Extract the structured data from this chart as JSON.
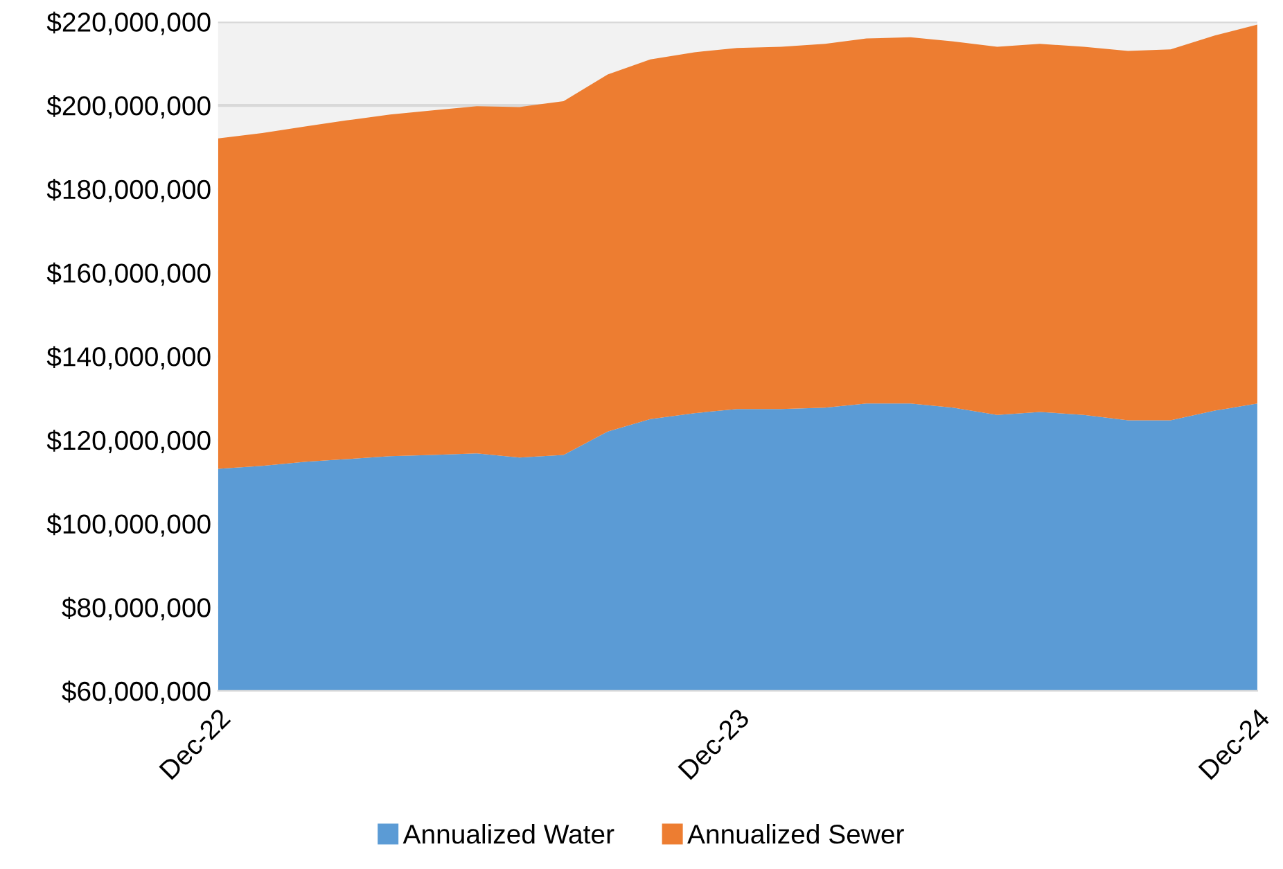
{
  "chart_data": {
    "type": "area",
    "stacked": true,
    "x": [
      "2022-12",
      "2023-01",
      "2023-02",
      "2023-03",
      "2023-04",
      "2023-05",
      "2023-06",
      "2023-07",
      "2023-08",
      "2023-09",
      "2023-10",
      "2023-11",
      "2023-12",
      "2024-01",
      "2024-02",
      "2024-03",
      "2024-04",
      "2024-05",
      "2024-06",
      "2024-07",
      "2024-08",
      "2024-09",
      "2024-10",
      "2024-11",
      "2024-12"
    ],
    "series": [
      {
        "name": "Annualized Water",
        "color": "#5b9bd5",
        "values": [
          113100000,
          113800000,
          114800000,
          115400000,
          116100000,
          116400000,
          116800000,
          115800000,
          116400000,
          122000000,
          125000000,
          126400000,
          127400000,
          127400000,
          127700000,
          128700000,
          128700000,
          127700000,
          126000000,
          126700000,
          126000000,
          124700000,
          124700000,
          127000000,
          128700000
        ]
      },
      {
        "name": "Annualized Sewer",
        "color": "#ed7d31",
        "values": [
          79000000,
          79600000,
          80200000,
          81000000,
          81700000,
          82400000,
          83000000,
          83800000,
          84600000,
          85400000,
          86000000,
          86300000,
          86300000,
          86600000,
          87000000,
          87300000,
          87600000,
          87600000,
          88000000,
          88000000,
          88000000,
          88300000,
          88700000,
          89700000,
          90600000
        ]
      }
    ],
    "ylim": [
      60000000,
      220000000
    ],
    "yticks": [
      {
        "value": 60000000,
        "label": "$60,000,000"
      },
      {
        "value": 80000000,
        "label": "$80,000,000"
      },
      {
        "value": 100000000,
        "label": "$100,000,000"
      },
      {
        "value": 120000000,
        "label": "$120,000,000"
      },
      {
        "value": 140000000,
        "label": "$140,000,000"
      },
      {
        "value": 160000000,
        "label": "$160,000,000"
      },
      {
        "value": 180000000,
        "label": "$180,000,000"
      },
      {
        "value": 200000000,
        "label": "$200,000,000"
      },
      {
        "value": 220000000,
        "label": "$220,000,000"
      }
    ],
    "xlim": [
      "2022-12",
      "2024-12"
    ],
    "xticks": [
      {
        "value": "2022-12",
        "label": "Dec-22"
      },
      {
        "value": "2023-12",
        "label": "Dec-23"
      },
      {
        "value": "2024-12",
        "label": "Dec-24"
      }
    ],
    "grid": "y",
    "legend": "bottom"
  }
}
